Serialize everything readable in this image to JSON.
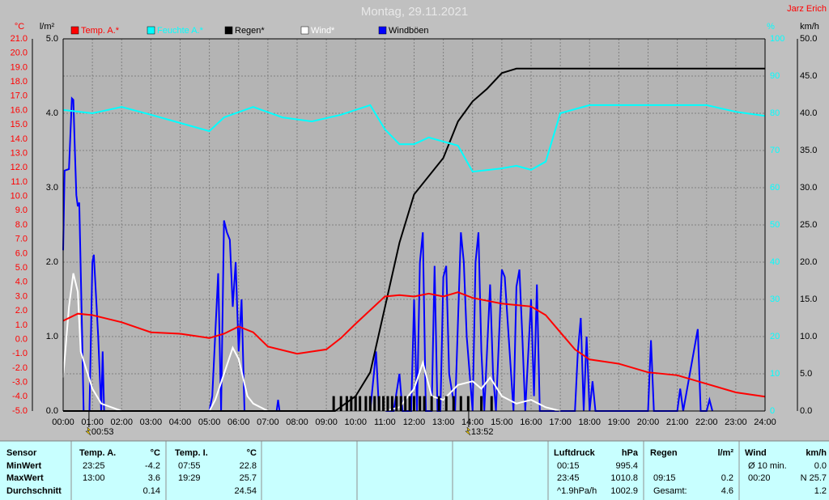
{
  "chart_data": {
    "type": "line",
    "title": "Montag, 29.11.2021",
    "author": "Jarz Erich",
    "xlim": [
      0,
      24
    ],
    "xticks": [
      {
        "value": 0,
        "label": "00:00"
      },
      {
        "value": 1,
        "label": "01:00"
      },
      {
        "value": 2,
        "label": "02:00"
      },
      {
        "value": 3,
        "label": "03:00"
      },
      {
        "value": 4,
        "label": "04:00"
      },
      {
        "value": 5,
        "label": "05:00"
      },
      {
        "value": 6,
        "label": "06:00"
      },
      {
        "value": 7,
        "label": "07:00"
      },
      {
        "value": 8,
        "label": "08:00"
      },
      {
        "value": 9,
        "label": "09:00"
      },
      {
        "value": 10,
        "label": "10:00"
      },
      {
        "value": 11,
        "label": "11:00"
      },
      {
        "value": 12,
        "label": "12:00"
      },
      {
        "value": 13,
        "label": "13:00"
      },
      {
        "value": 14,
        "label": "14:00"
      },
      {
        "value": 15,
        "label": "15:00"
      },
      {
        "value": 16,
        "label": "16:00"
      },
      {
        "value": 17,
        "label": "17:00"
      },
      {
        "value": 18,
        "label": "18:00"
      },
      {
        "value": 19,
        "label": "19:00"
      },
      {
        "value": 20,
        "label": "20:00"
      },
      {
        "value": 21,
        "label": "21:00"
      },
      {
        "value": 22,
        "label": "22:00"
      },
      {
        "value": 23,
        "label": "23:00"
      },
      {
        "value": 24,
        "label": "24:00"
      }
    ],
    "grid": true,
    "axes": [
      {
        "unit": "°C",
        "color": "#ff0000",
        "side": "left",
        "lim": [
          -5,
          21
        ],
        "ticks": [
          {
            "value": 21,
            "label": "21.0"
          },
          {
            "value": 20,
            "label": "20.0"
          },
          {
            "value": 19,
            "label": "19.0"
          },
          {
            "value": 18,
            "label": "18.0"
          },
          {
            "value": 17,
            "label": "17.0"
          },
          {
            "value": 16,
            "label": "16.0"
          },
          {
            "value": 15,
            "label": "15.0"
          },
          {
            "value": 14,
            "label": "14.0"
          },
          {
            "value": 13,
            "label": "13.0"
          },
          {
            "value": 12,
            "label": "12.0"
          },
          {
            "value": 11,
            "label": "11.0"
          },
          {
            "value": 10,
            "label": "10.0"
          },
          {
            "value": 9,
            "label": "9.0"
          },
          {
            "value": 8,
            "label": "8.0"
          },
          {
            "value": 7,
            "label": "7.0"
          },
          {
            "value": 6,
            "label": "6.0"
          },
          {
            "value": 5,
            "label": "5.0"
          },
          {
            "value": 4,
            "label": "4.0"
          },
          {
            "value": 3,
            "label": "3.0"
          },
          {
            "value": 2,
            "label": "2.0"
          },
          {
            "value": 1,
            "label": "1.0"
          },
          {
            "value": 0,
            "label": "0.0"
          },
          {
            "value": -1,
            "label": "-1.0"
          },
          {
            "value": -2,
            "label": "-2.0"
          },
          {
            "value": -3,
            "label": "-3.0"
          },
          {
            "value": -4,
            "label": "-4.0"
          },
          {
            "value": -5,
            "label": "-5.0"
          }
        ]
      },
      {
        "unit": "l/m²",
        "color": "#000000",
        "side": "left",
        "lim": [
          0,
          5
        ],
        "ticks": [
          {
            "value": 0,
            "label": "0.0"
          },
          {
            "value": 1,
            "label": "1.0"
          },
          {
            "value": 2,
            "label": "2.0"
          },
          {
            "value": 3,
            "label": "3.0"
          },
          {
            "value": 4,
            "label": "4.0"
          },
          {
            "value": 5,
            "label": "5.0"
          }
        ]
      },
      {
        "unit": "%",
        "color": "#00ffff",
        "side": "right",
        "lim": [
          0,
          100
        ],
        "ticks": [
          0,
          10,
          20,
          30,
          40,
          50,
          60,
          70,
          80,
          90,
          100
        ]
      },
      {
        "unit": "km/h",
        "color": "#000000",
        "side": "right",
        "lim": [
          0,
          50
        ],
        "ticks": [
          {
            "value": 0,
            "label": "0.0"
          },
          {
            "value": 5,
            "label": "5.0"
          },
          {
            "value": 10,
            "label": "10.0"
          },
          {
            "value": 15,
            "label": "15.0"
          },
          {
            "value": 20,
            "label": "20.0"
          },
          {
            "value": 25,
            "label": "25.0"
          },
          {
            "value": 30,
            "label": "30.0"
          },
          {
            "value": 35,
            "label": "35.0"
          },
          {
            "value": 40,
            "label": "40.0"
          },
          {
            "value": 45,
            "label": "45.0"
          },
          {
            "value": 50,
            "label": "50.0"
          }
        ]
      }
    ],
    "series": [
      {
        "name": "Temp. A.*",
        "color": "#ff0000",
        "axis": 0,
        "x": [
          0,
          0.5,
          1,
          2,
          3,
          4,
          5,
          5.5,
          6,
          6.5,
          7,
          8,
          9,
          9.5,
          10,
          11,
          11.5,
          12,
          12.5,
          13,
          13.5,
          14,
          15,
          16,
          16.5,
          17,
          17.5,
          18,
          19,
          20,
          21,
          22,
          23,
          24
        ],
        "values": [
          1.3,
          1.8,
          1.7,
          1.2,
          0.5,
          0.4,
          0.1,
          0.4,
          0.9,
          0.5,
          -0.5,
          -1.0,
          -0.7,
          0.1,
          1.1,
          3.0,
          3.1,
          3.0,
          3.2,
          3.0,
          3.3,
          2.9,
          2.5,
          2.3,
          1.7,
          0.5,
          -0.7,
          -1.4,
          -1.7,
          -2.3,
          -2.5,
          -3.1,
          -3.7,
          -4.0
        ]
      },
      {
        "name": "Feuchte A.*",
        "color": "#00ffff",
        "axis": 2,
        "x": [
          0,
          1,
          2,
          3,
          4,
          5,
          5.5,
          6.5,
          7.5,
          8.5,
          9.5,
          10.5,
          11,
          11.5,
          12,
          12.5,
          13.5,
          14,
          15,
          15.5,
          16,
          16.5,
          17,
          18,
          20,
          22,
          23,
          24
        ],
        "values": [
          80.9,
          80,
          81.7,
          79.6,
          77.4,
          75.2,
          78.9,
          81.7,
          78.9,
          77.8,
          79.6,
          82.2,
          75.7,
          71.7,
          71.7,
          73.5,
          71.3,
          64.3,
          65.2,
          65.9,
          64.8,
          67,
          80,
          82.2,
          82.2,
          82.2,
          80.4,
          79.3
        ]
      },
      {
        "name": "Regen*",
        "color": "#000000",
        "axis": 1,
        "x": [
          0,
          9.3,
          10,
          10.5,
          11,
          11.5,
          12,
          13,
          13.5,
          14,
          14.5,
          15,
          15.5,
          24
        ],
        "values": [
          0,
          0,
          0.2,
          0.52,
          1.39,
          2.26,
          2.91,
          3.4,
          3.89,
          4.16,
          4.33,
          4.54,
          4.6,
          4.6
        ],
        "bars_x": [
          9.25,
          9.5,
          9.7,
          9.85,
          10,
          10.15,
          10.35,
          10.5,
          10.65,
          10.8,
          10.95,
          11.1,
          11.25,
          11.4,
          11.55,
          11.7,
          11.85,
          12,
          12.2,
          12.35,
          12.6,
          12.85,
          13.1,
          13.35,
          13.6,
          13.85,
          14.3,
          14.65
        ],
        "bars": [
          0.2,
          0.2,
          0.2,
          0.2,
          0.2,
          0.2,
          0.2,
          0.2,
          0.2,
          0.2,
          0.2,
          0.2,
          0.2,
          0.2,
          0.2,
          0.2,
          0.2,
          0.2,
          0.2,
          0.2,
          0.2,
          0.2,
          0.2,
          0.2,
          0.2,
          0.2,
          0.2,
          0.2
        ]
      },
      {
        "name": "Wind*",
        "color": "#ffffff",
        "axis": 3,
        "x": [
          0,
          0.2,
          0.35,
          0.5,
          0.6,
          0.8,
          1,
          1.3,
          2,
          5,
          5.2,
          5.5,
          5.8,
          6,
          6.3,
          6.5,
          7,
          11,
          11.5,
          12,
          12.3,
          12.6,
          13,
          13.5,
          14,
          14.3,
          14.6,
          15,
          15.5,
          16,
          16.5,
          17
        ],
        "values": [
          4.5,
          14,
          18.5,
          16,
          8,
          5.5,
          3,
          1,
          0,
          0,
          1.5,
          5,
          8.5,
          7,
          2,
          1,
          0,
          0,
          0.5,
          3,
          6.5,
          2,
          1.5,
          3.5,
          4,
          3,
          4.5,
          2,
          1,
          1.5,
          0.5,
          0
        ]
      },
      {
        "name": "Windböen",
        "color": "#0000ff",
        "axis": 3,
        "x": [
          0,
          0.05,
          0.2,
          0.3,
          0.35,
          0.4,
          0.45,
          0.5,
          0.55,
          0.65,
          0.7,
          0.9,
          1,
          1.05,
          1.2,
          1.3,
          1.35,
          1.4,
          5,
          5.1,
          5.3,
          5.4,
          5.5,
          5.6,
          5.7,
          5.8,
          5.9,
          6,
          6.1,
          6.2,
          7.3,
          7.35,
          7.4,
          10.5,
          10.7,
          10.8,
          11.3,
          11.5,
          11.6,
          11.9,
          12,
          12.1,
          12.2,
          12.3,
          12.4,
          12.6,
          12.7,
          12.8,
          12.9,
          13,
          13.1,
          13.2,
          13.4,
          13.6,
          13.7,
          13.8,
          14,
          14.1,
          14.2,
          14.3,
          14.4,
          14.6,
          14.7,
          14.8,
          15,
          15.1,
          15.2,
          15.4,
          15.5,
          15.6,
          15.7,
          15.8,
          16,
          16.1,
          16.2,
          16.3,
          17.5,
          17.6,
          17.7,
          17.8,
          17.9,
          18,
          18.1,
          18.2,
          20,
          20.1,
          20.2,
          21,
          21.1,
          21.2,
          21.7,
          21.8,
          22,
          22.1,
          22.2
        ],
        "values": [
          21.6,
          32.3,
          32.5,
          42,
          41.8,
          35,
          29,
          27.5,
          28,
          10,
          0,
          0,
          20,
          21,
          10,
          0,
          8,
          0,
          0,
          2,
          18.5,
          0,
          25.6,
          24,
          23,
          14,
          20,
          8,
          15,
          0,
          0,
          1.5,
          0,
          0,
          8,
          0,
          0,
          5,
          0,
          0,
          15,
          0,
          20,
          24,
          0,
          0,
          19.5,
          0,
          0,
          18,
          19.5,
          5,
          0,
          24,
          20,
          10,
          0,
          20,
          24,
          8,
          0,
          17,
          5,
          0,
          19,
          18,
          12,
          0,
          16.7,
          19,
          10,
          0,
          15,
          2,
          17,
          0,
          0,
          8,
          12.5,
          0,
          10,
          0,
          4,
          0,
          0,
          9.5,
          0,
          0,
          3,
          0,
          11,
          0,
          0,
          1.5,
          0
        ]
      }
    ],
    "annotations": [
      {
        "x": 0.8833,
        "text": "00:53"
      },
      {
        "x": 13.8667,
        "text": "13:52"
      }
    ]
  },
  "table": {
    "rows": [
      [
        "Sensor",
        "Temp. A.",
        "°C",
        "Temp. I.",
        "°C",
        "Luftdruck",
        "hPa",
        "Regen",
        "l/m²",
        "Wind",
        "km/h"
      ],
      [
        "MinWert",
        "23:25",
        "-4.2",
        "07:55",
        "22.8",
        "00:15",
        "995.4",
        null,
        null,
        "Ø 10 min.",
        "0.0"
      ],
      [
        "MaxWert",
        "13:00",
        "3.6",
        "19:29",
        "25.7",
        "23:45",
        "1010.8",
        "09:15",
        "0.2",
        "00:20",
        "N 25.7"
      ],
      [
        "Durchschnitt",
        null,
        "0.14",
        null,
        "24.54",
        "^1.9hPa/h",
        "1002.9",
        "Gesamt:",
        "4.6",
        null,
        "1.2"
      ]
    ]
  }
}
